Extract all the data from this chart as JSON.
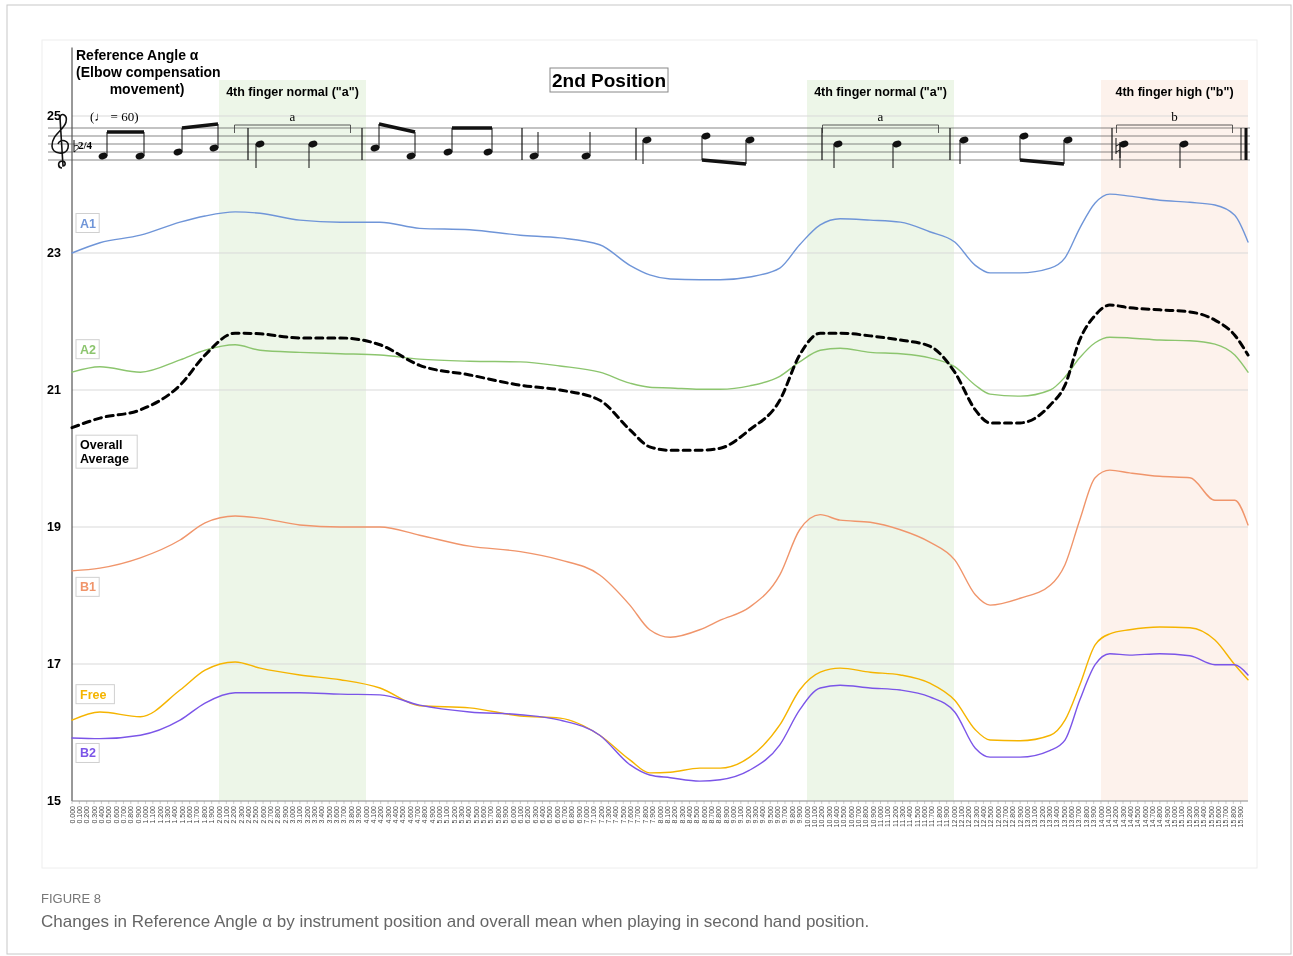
{
  "chart_data": {
    "type": "line",
    "title": "2nd Position",
    "ylabel": "Reference Angle α\n(Elbow compensation\nmovement)",
    "x": [
      0,
      0.38,
      0.93,
      1.47,
      1.81,
      2.22,
      2.56,
      3.1,
      3.65,
      4.19,
      4.73,
      5.41,
      6.1,
      6.64,
      7.18,
      7.59,
      7.86,
      8.14,
      8.54,
      8.82,
      9.22,
      9.63,
      9.9,
      10.18,
      10.45,
      10.86,
      11.27,
      11.67,
      12.01,
      12.29,
      12.49,
      12.9,
      13.31,
      13.51,
      13.71,
      13.92,
      14.12,
      14.39,
      14.8,
      15.21,
      15.55,
      15.82,
      16.0
    ],
    "series": [
      {
        "name": "A1",
        "color": "#6f95d8",
        "values": [
          23.0,
          23.15,
          23.26,
          23.45,
          23.54,
          23.6,
          23.58,
          23.48,
          23.45,
          23.45,
          23.36,
          23.34,
          23.26,
          23.22,
          23.12,
          22.82,
          22.68,
          22.62,
          22.61,
          22.61,
          22.65,
          22.78,
          23.12,
          23.41,
          23.5,
          23.48,
          23.45,
          23.31,
          23.16,
          22.82,
          22.71,
          22.71,
          22.78,
          22.93,
          23.36,
          23.73,
          23.86,
          23.83,
          23.77,
          23.74,
          23.7,
          23.55,
          23.16
        ]
      },
      {
        "name": "A2",
        "color": "#8cc56e",
        "values": [
          21.26,
          21.34,
          21.26,
          21.44,
          21.58,
          21.66,
          21.58,
          21.55,
          21.53,
          21.51,
          21.45,
          21.42,
          21.41,
          21.35,
          21.26,
          21.1,
          21.04,
          21.03,
          21.01,
          21.01,
          21.06,
          21.2,
          21.41,
          21.58,
          21.61,
          21.55,
          21.53,
          21.47,
          21.34,
          21.07,
          20.94,
          20.91,
          21.0,
          21.19,
          21.47,
          21.69,
          21.77,
          21.76,
          21.73,
          21.72,
          21.67,
          21.51,
          21.26
        ]
      },
      {
        "name": "Overall Average",
        "color": "#000000",
        "line_style": "dashed",
        "values": [
          20.45,
          20.59,
          20.71,
          21.07,
          21.51,
          21.83,
          21.82,
          21.76,
          21.76,
          21.66,
          21.36,
          21.22,
          21.07,
          21.0,
          20.85,
          20.42,
          20.17,
          20.12,
          20.12,
          20.15,
          20.42,
          20.85,
          21.51,
          21.83,
          21.83,
          21.79,
          21.73,
          21.64,
          21.26,
          20.71,
          20.52,
          20.52,
          20.78,
          21.07,
          21.73,
          22.09,
          22.24,
          22.2,
          22.17,
          22.14,
          22.02,
          21.8,
          21.51
        ]
      },
      {
        "name": "B1",
        "color": "#f0956b",
        "values": [
          18.36,
          18.4,
          18.55,
          18.81,
          19.06,
          19.16,
          19.13,
          19.03,
          19.0,
          19.0,
          18.88,
          18.72,
          18.64,
          18.52,
          18.3,
          17.86,
          17.5,
          17.39,
          17.5,
          17.64,
          17.83,
          18.3,
          18.96,
          19.18,
          19.1,
          19.07,
          18.96,
          18.78,
          18.52,
          18.01,
          17.86,
          17.96,
          18.15,
          18.45,
          19.1,
          19.72,
          19.83,
          19.79,
          19.74,
          19.72,
          19.39,
          19.39,
          19.03
        ]
      },
      {
        "name": "Free",
        "color": "#f5b400",
        "values": [
          16.18,
          16.3,
          16.23,
          16.62,
          16.91,
          17.03,
          16.94,
          16.84,
          16.77,
          16.65,
          16.39,
          16.36,
          16.24,
          16.21,
          15.96,
          15.6,
          15.41,
          15.42,
          15.48,
          15.48,
          15.64,
          16.11,
          16.62,
          16.88,
          16.94,
          16.88,
          16.84,
          16.72,
          16.47,
          16.04,
          15.89,
          15.88,
          15.96,
          16.18,
          16.69,
          17.28,
          17.44,
          17.5,
          17.54,
          17.53,
          17.35,
          16.99,
          16.77
        ]
      },
      {
        "name": "B2",
        "color": "#7b55e8",
        "values": [
          15.92,
          15.91,
          15.96,
          16.18,
          16.43,
          16.58,
          16.58,
          16.58,
          16.56,
          16.55,
          16.4,
          16.3,
          16.26,
          16.18,
          15.96,
          15.53,
          15.38,
          15.34,
          15.29,
          15.31,
          15.45,
          15.82,
          16.33,
          16.65,
          16.69,
          16.65,
          16.62,
          16.52,
          16.3,
          15.77,
          15.64,
          15.64,
          15.74,
          15.89,
          16.47,
          16.99,
          17.15,
          17.13,
          17.15,
          17.12,
          16.99,
          16.99,
          16.84
        ]
      }
    ],
    "xlim": [
      0,
      16
    ],
    "ylim": [
      15,
      26
    ],
    "yticks": [
      15,
      17,
      19,
      21,
      23,
      25
    ],
    "grid": "y",
    "bands": [
      {
        "axis": "x",
        "from": 2.0,
        "to": 4.0,
        "label": "4th finger normal (\"a\")",
        "color": "#edf6e8"
      },
      {
        "axis": "x",
        "from": 10.0,
        "to": 12.0,
        "label": "4th finger normal (\"a\")",
        "color": "#edf6e8"
      },
      {
        "axis": "x",
        "from": 14.0,
        "to": 16.0,
        "label": "4th finger high (\"b\")",
        "color": "#fdf2ec"
      }
    ],
    "annotations": [
      "(♩ = 60)",
      "2/4",
      "a",
      "a",
      "b",
      "FIGURE 8",
      "Changes in Reference Angle α by instrument position and overall mean when playing in second hand position."
    ],
    "xticks": [
      {
        "value": 0,
        "label": "0.000"
      },
      {
        "value": 0.1,
        "label": "0.100"
      },
      {
        "value": 0.2,
        "label": "0.200"
      },
      {
        "value": 0.3,
        "label": "0.300"
      },
      {
        "value": 0.4,
        "label": "0.400"
      },
      {
        "value": 0.5,
        "label": "0.500"
      },
      {
        "value": 0.6,
        "label": "0.600"
      },
      {
        "value": 0.7,
        "label": "0.700"
      },
      {
        "value": 0.8,
        "label": "0.800"
      },
      {
        "value": 0.9,
        "label": "0.900"
      },
      {
        "value": 1,
        "label": "1.000"
      },
      {
        "value": 1.1,
        "label": "1.100"
      },
      {
        "value": 1.2,
        "label": "1.200"
      },
      {
        "value": 1.3,
        "label": "1.300"
      },
      {
        "value": 1.4,
        "label": "1.400"
      },
      {
        "value": 1.5,
        "label": "1.500"
      },
      {
        "value": 1.6,
        "label": "1.600"
      },
      {
        "value": 1.7,
        "label": "1.700"
      },
      {
        "value": 1.8,
        "label": "1.800"
      },
      {
        "value": 1.9,
        "label": "1.900"
      },
      {
        "value": 2,
        "label": "2.000"
      },
      {
        "value": 2.1,
        "label": "2.100"
      },
      {
        "value": 2.2,
        "label": "2.200"
      },
      {
        "value": 2.3,
        "label": "2.300"
      },
      {
        "value": 2.4,
        "label": "2.400"
      },
      {
        "value": 2.5,
        "label": "2.500"
      },
      {
        "value": 2.6,
        "label": "2.600"
      },
      {
        "value": 2.7,
        "label": "2.700"
      },
      {
        "value": 2.8,
        "label": "2.800"
      },
      {
        "value": 2.9,
        "label": "2.900"
      },
      {
        "value": 3,
        "label": "3.000"
      },
      {
        "value": 3.1,
        "label": "3.100"
      },
      {
        "value": 3.2,
        "label": "3.200"
      },
      {
        "value": 3.3,
        "label": "3.300"
      },
      {
        "value": 3.4,
        "label": "3.400"
      },
      {
        "value": 3.5,
        "label": "3.500"
      },
      {
        "value": 3.6,
        "label": "3.600"
      },
      {
        "value": 3.7,
        "label": "3.700"
      },
      {
        "value": 3.8,
        "label": "3.800"
      },
      {
        "value": 3.9,
        "label": "3.900"
      },
      {
        "value": 4,
        "label": "4.000"
      },
      {
        "value": 4.1,
        "label": "4.100"
      },
      {
        "value": 4.2,
        "label": "4.200"
      },
      {
        "value": 4.3,
        "label": "4.300"
      },
      {
        "value": 4.4,
        "label": "4.400"
      },
      {
        "value": 4.5,
        "label": "4.500"
      },
      {
        "value": 4.6,
        "label": "4.600"
      },
      {
        "value": 4.7,
        "label": "4.700"
      },
      {
        "value": 4.8,
        "label": "4.800"
      },
      {
        "value": 4.9,
        "label": "4.900"
      },
      {
        "value": 5,
        "label": "5.000"
      },
      {
        "value": 5.1,
        "label": "5.100"
      },
      {
        "value": 5.2,
        "label": "5.200"
      },
      {
        "value": 5.3,
        "label": "5.300"
      },
      {
        "value": 5.4,
        "label": "5.400"
      },
      {
        "value": 5.5,
        "label": "5.500"
      },
      {
        "value": 5.6,
        "label": "5.600"
      },
      {
        "value": 5.7,
        "label": "5.700"
      },
      {
        "value": 5.8,
        "label": "5.800"
      },
      {
        "value": 5.9,
        "label": "5.900"
      },
      {
        "value": 6,
        "label": "6.000"
      },
      {
        "value": 6.1,
        "label": "6.100"
      },
      {
        "value": 6.2,
        "label": "6.200"
      },
      {
        "value": 6.3,
        "label": "6.300"
      },
      {
        "value": 6.4,
        "label": "6.400"
      },
      {
        "value": 6.5,
        "label": "6.500"
      },
      {
        "value": 6.6,
        "label": "6.600"
      },
      {
        "value": 6.7,
        "label": "6.700"
      },
      {
        "value": 6.8,
        "label": "6.800"
      },
      {
        "value": 6.9,
        "label": "6.900"
      },
      {
        "value": 7,
        "label": "7.000"
      },
      {
        "value": 7.1,
        "label": "7.100"
      },
      {
        "value": 7.2,
        "label": "7.200"
      },
      {
        "value": 7.3,
        "label": "7.300"
      },
      {
        "value": 7.4,
        "label": "7.400"
      },
      {
        "value": 7.5,
        "label": "7.500"
      },
      {
        "value": 7.6,
        "label": "7.600"
      },
      {
        "value": 7.7,
        "label": "7.700"
      },
      {
        "value": 7.8,
        "label": "7.800"
      },
      {
        "value": 7.9,
        "label": "7.900"
      },
      {
        "value": 8,
        "label": "8.000"
      },
      {
        "value": 8.1,
        "label": "8.100"
      },
      {
        "value": 8.2,
        "label": "8.200"
      },
      {
        "value": 8.3,
        "label": "8.300"
      },
      {
        "value": 8.4,
        "label": "8.400"
      },
      {
        "value": 8.5,
        "label": "8.500"
      },
      {
        "value": 8.6,
        "label": "8.600"
      },
      {
        "value": 8.7,
        "label": "8.700"
      },
      {
        "value": 8.8,
        "label": "8.800"
      },
      {
        "value": 8.9,
        "label": "8.900"
      },
      {
        "value": 9,
        "label": "9.000"
      },
      {
        "value": 9.1,
        "label": "9.100"
      },
      {
        "value": 9.2,
        "label": "9.200"
      },
      {
        "value": 9.3,
        "label": "9.300"
      },
      {
        "value": 9.4,
        "label": "9.400"
      },
      {
        "value": 9.5,
        "label": "9.500"
      },
      {
        "value": 9.6,
        "label": "9.600"
      },
      {
        "value": 9.7,
        "label": "9.700"
      },
      {
        "value": 9.8,
        "label": "9.800"
      },
      {
        "value": 9.9,
        "label": "9.900"
      },
      {
        "value": 10,
        "label": "10.000"
      },
      {
        "value": 10.1,
        "label": "10.100"
      },
      {
        "value": 10.2,
        "label": "10.200"
      },
      {
        "value": 10.3,
        "label": "10.300"
      },
      {
        "value": 10.4,
        "label": "10.400"
      },
      {
        "value": 10.5,
        "label": "10.500"
      },
      {
        "value": 10.6,
        "label": "10.600"
      },
      {
        "value": 10.7,
        "label": "10.700"
      },
      {
        "value": 10.8,
        "label": "10.800"
      },
      {
        "value": 10.9,
        "label": "10.900"
      },
      {
        "value": 11,
        "label": "11.000"
      },
      {
        "value": 11.1,
        "label": "11.100"
      },
      {
        "value": 11.2,
        "label": "11.200"
      },
      {
        "value": 11.3,
        "label": "11.300"
      },
      {
        "value": 11.4,
        "label": "11.400"
      },
      {
        "value": 11.5,
        "label": "11.500"
      },
      {
        "value": 11.6,
        "label": "11.600"
      },
      {
        "value": 11.7,
        "label": "11.700"
      },
      {
        "value": 11.8,
        "label": "11.800"
      },
      {
        "value": 11.9,
        "label": "11.900"
      },
      {
        "value": 12,
        "label": "12.000"
      },
      {
        "value": 12.1,
        "label": "12.100"
      },
      {
        "value": 12.2,
        "label": "12.200"
      },
      {
        "value": 12.3,
        "label": "12.300"
      },
      {
        "value": 12.4,
        "label": "12.400"
      },
      {
        "value": 12.5,
        "label": "12.500"
      },
      {
        "value": 12.6,
        "label": "12.600"
      },
      {
        "value": 12.7,
        "label": "12.700"
      },
      {
        "value": 12.8,
        "label": "12.800"
      },
      {
        "value": 12.9,
        "label": "12.900"
      },
      {
        "value": 13,
        "label": "13.000"
      },
      {
        "value": 13.1,
        "label": "13.100"
      },
      {
        "value": 13.2,
        "label": "13.200"
      },
      {
        "value": 13.3,
        "label": "13.300"
      },
      {
        "value": 13.4,
        "label": "13.400"
      },
      {
        "value": 13.5,
        "label": "13.500"
      },
      {
        "value": 13.6,
        "label": "13.600"
      },
      {
        "value": 13.7,
        "label": "13.700"
      },
      {
        "value": 13.8,
        "label": "13.800"
      },
      {
        "value": 13.9,
        "label": "13.900"
      },
      {
        "value": 14,
        "label": "14.000"
      },
      {
        "value": 14.1,
        "label": "14.100"
      },
      {
        "value": 14.2,
        "label": "14.200"
      },
      {
        "value": 14.3,
        "label": "14.300"
      },
      {
        "value": 14.4,
        "label": "14.400"
      },
      {
        "value": 14.5,
        "label": "14.500"
      },
      {
        "value": 14.6,
        "label": "14.600"
      },
      {
        "value": 14.7,
        "label": "14.700"
      },
      {
        "value": 14.8,
        "label": "14.800"
      },
      {
        "value": 14.9,
        "label": "14.900"
      },
      {
        "value": 15,
        "label": "15.000"
      },
      {
        "value": 15.1,
        "label": "15.100"
      },
      {
        "value": 15.2,
        "label": "15.200"
      },
      {
        "value": 15.3,
        "label": "15.300"
      },
      {
        "value": 15.4,
        "label": "15.400"
      },
      {
        "value": 15.5,
        "label": "15.500"
      },
      {
        "value": 15.6,
        "label": "15.600"
      },
      {
        "value": 15.7,
        "label": "15.700"
      },
      {
        "value": 15.8,
        "label": "15.800"
      },
      {
        "value": 15.9,
        "label": "15.900"
      }
    ]
  }
}
